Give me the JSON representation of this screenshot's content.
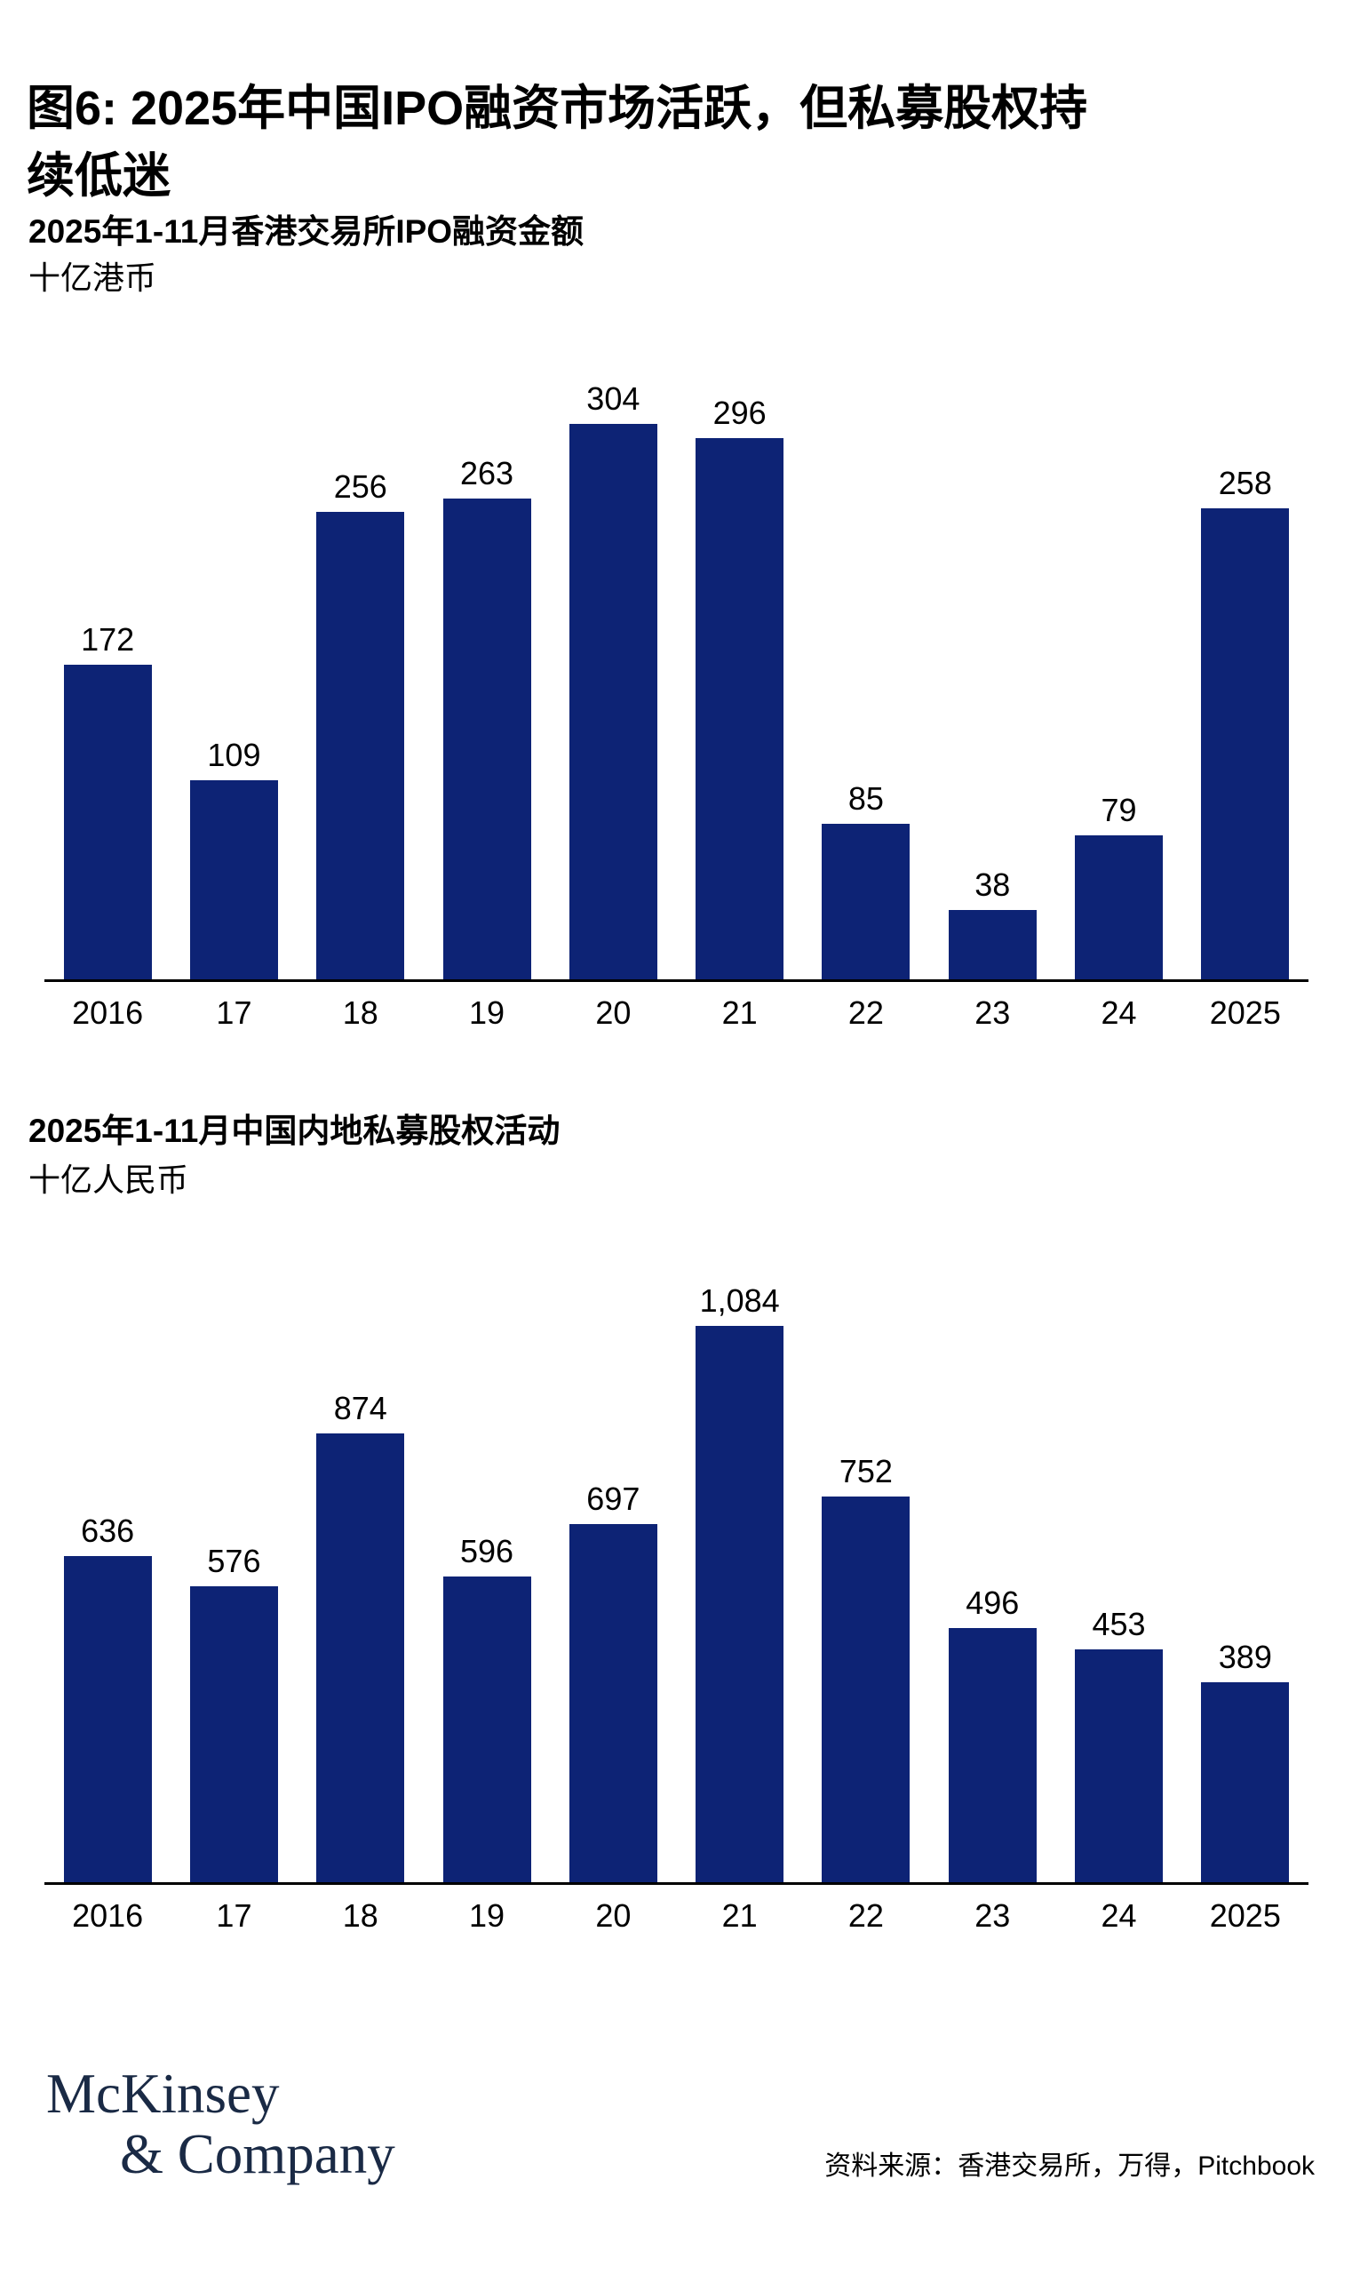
{
  "page": {
    "title_line1": "图6: 2025年中国IPO融资市场活跃，但私募股权持",
    "title_line2": "续低迷"
  },
  "colors": {
    "bar": "#0d2375",
    "axis": "#000000",
    "logo": "#1a2a45",
    "text": "#000000"
  },
  "chart_data": [
    {
      "type": "bar",
      "title": "2025年1-11月香港交易所IPO融资金额",
      "unit": "十亿港币",
      "categories": [
        "2016",
        "17",
        "18",
        "19",
        "20",
        "21",
        "22",
        "23",
        "24",
        "2025"
      ],
      "values": [
        172,
        109,
        256,
        263,
        304,
        296,
        85,
        38,
        79,
        258
      ],
      "value_labels": [
        "172",
        "109",
        "256",
        "263",
        "304",
        "296",
        "85",
        "38",
        "79",
        "258"
      ],
      "ylim": [
        0,
        320
      ],
      "grid": false,
      "legend": "none",
      "bar_color": "#0d2375"
    },
    {
      "type": "bar",
      "title": "2025年1-11月中国内地私募股权活动",
      "unit": "十亿人民币",
      "categories": [
        "2016",
        "17",
        "18",
        "19",
        "20",
        "21",
        "22",
        "23",
        "24",
        "2025"
      ],
      "values": [
        636,
        576,
        874,
        596,
        697,
        1084,
        752,
        496,
        453,
        389
      ],
      "value_labels": [
        "636",
        "576",
        "874",
        "596",
        "697",
        "1,084",
        "752",
        "496",
        "453",
        "389"
      ],
      "ylim": [
        0,
        1140
      ],
      "grid": false,
      "legend": "none",
      "bar_color": "#0d2375"
    }
  ],
  "footer": {
    "logo_line1": "McKinsey",
    "logo_line2": "& Company",
    "source": "资料来源：香港交易所，万得，Pitchbook"
  }
}
